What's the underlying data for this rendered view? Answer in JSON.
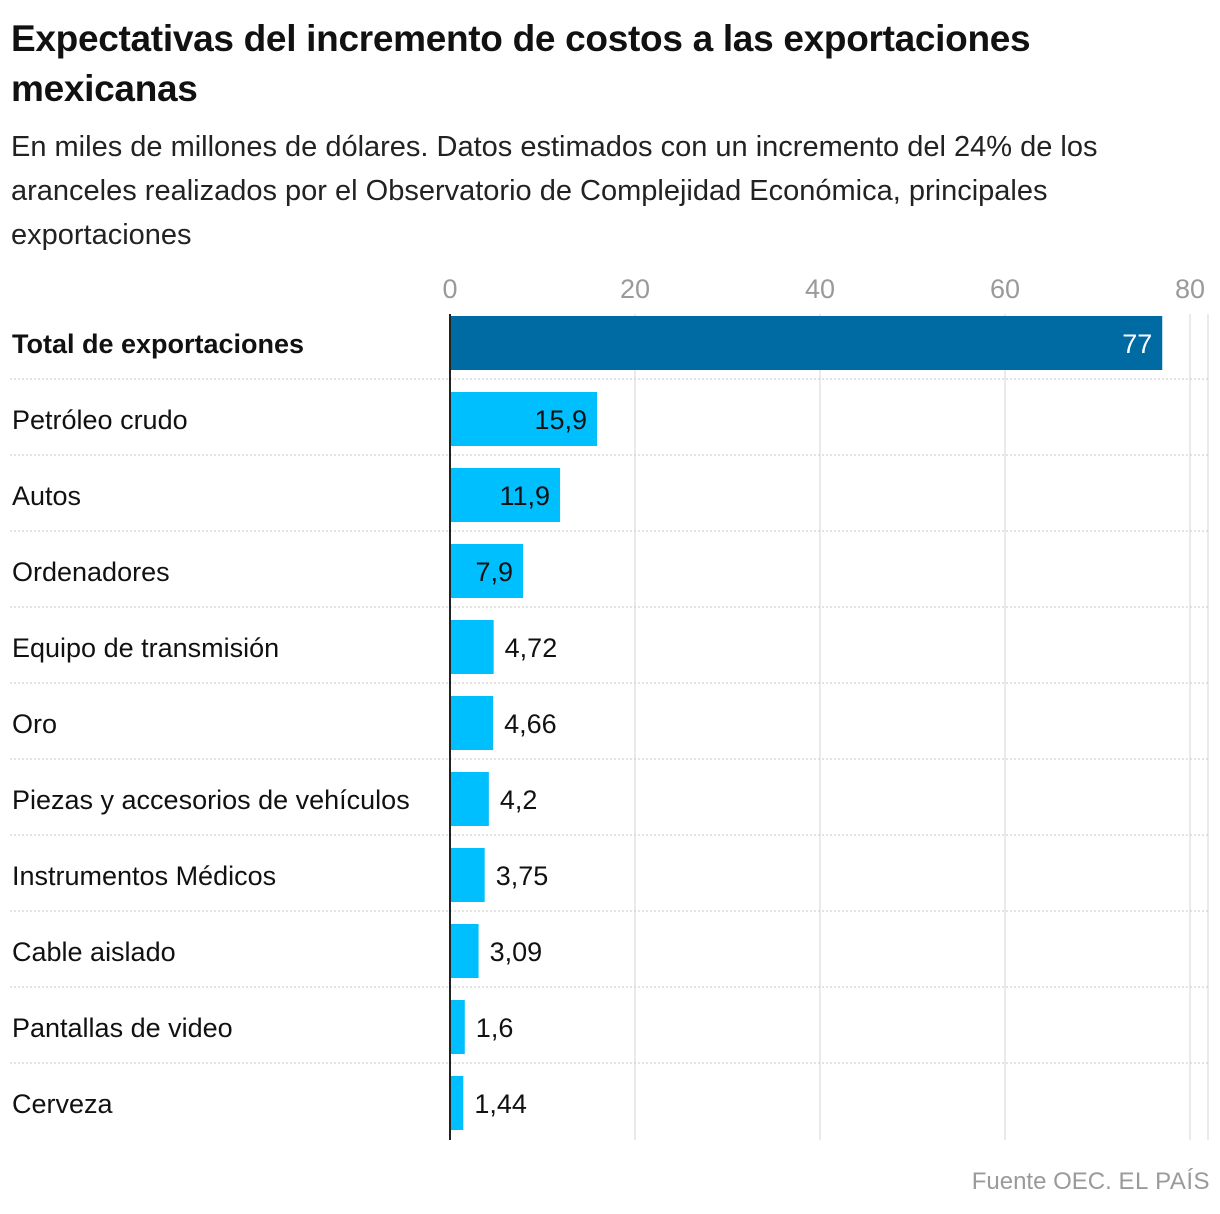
{
  "title": "Expectativas del incremento de costos a las exportaciones mexicanas",
  "subtitle": "En miles de millones de dólares. Datos estimados con un incremento del 24% de los aranceles realizados por el Observatorio de Complejidad Económica, principales exportaciones",
  "source": {
    "label": "Fuente OEC.",
    "brand": "EL PAÍS"
  },
  "colors": {
    "total_bar": "#006ba3",
    "bar": "#00bfff",
    "grid": "#d6d6d6",
    "tick_text": "#9a9a9a",
    "axis": "#222222"
  },
  "chart_data": {
    "type": "bar",
    "orientation": "horizontal",
    "title": "Expectativas del incremento de costos a las exportaciones mexicanas",
    "xlabel": "",
    "ylabel": "",
    "xlim": [
      0,
      80
    ],
    "xticks": [
      0,
      20,
      40,
      60,
      80
    ],
    "xtick_labels": [
      "0",
      "20",
      "40",
      "60",
      "80"
    ],
    "grid": true,
    "legend": "none",
    "categories": [
      "Total de exportaciones",
      "Petróleo crudo",
      "Autos",
      "Ordenadores",
      "Equipo de transmisión",
      "Oro",
      "Piezas y accesorios de vehículos",
      "Instrumentos Médicos",
      "Cable aislado",
      "Pantallas de video",
      "Cerveza"
    ],
    "values": [
      77,
      15.9,
      11.9,
      7.9,
      4.72,
      4.66,
      4.2,
      3.75,
      3.09,
      1.6,
      1.44
    ],
    "value_labels": [
      "77",
      "15,9",
      "11,9",
      "7,9",
      "4,72",
      "4,66",
      "4,2",
      "3,75",
      "3,09",
      "1,6",
      "1,44"
    ],
    "highlighted": [
      "Total de exportaciones"
    ]
  }
}
